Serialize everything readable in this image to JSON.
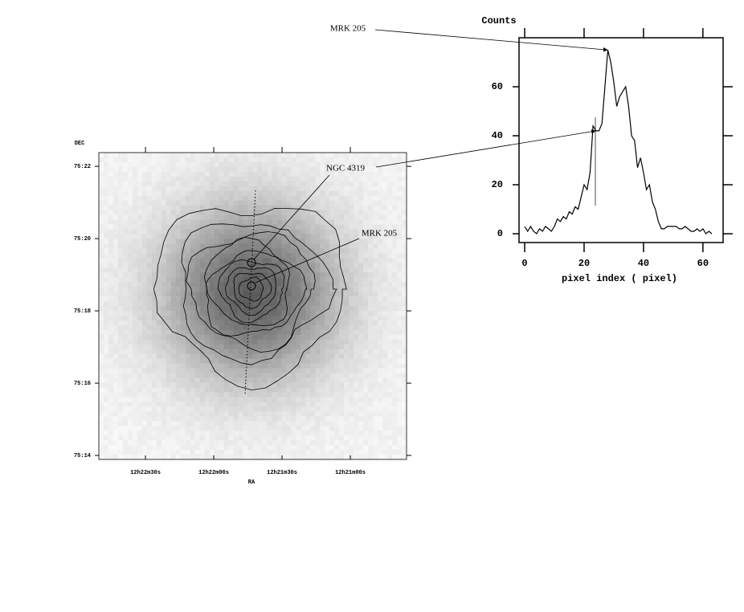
{
  "chart_data": [
    {
      "type": "image",
      "xlabel": "RA",
      "ylabel": "DEC",
      "xlim": [
        44570.5,
        44435.3
      ],
      "xticks": [
        {
          "value": 44550,
          "label": "12h22m30s"
        },
        {
          "value": 44520,
          "label": "12h22m00s"
        },
        {
          "value": 44490,
          "label": "12h21m30s"
        },
        {
          "value": 44460,
          "label": "12h21m00s"
        }
      ],
      "ylim": [
        4513.89,
        4522.38
      ],
      "yticks": [
        {
          "value": 4522,
          "label": "75:22"
        },
        {
          "value": 4520,
          "label": "75:20"
        },
        {
          "value": 4518,
          "label": "75:18"
        },
        {
          "value": 4516,
          "label": "75:16"
        },
        {
          "value": 4514,
          "label": "75:14"
        }
      ],
      "annotations": [
        {
          "text": "MRK 205"
        }
      ]
    },
    {
      "type": "line",
      "ylabel": "Counts",
      "xlabel": "pixel index  ( pixel)",
      "color": "#000000",
      "x": [
        0,
        1,
        2,
        3,
        4,
        5,
        6,
        7,
        8,
        9,
        10,
        11,
        12,
        13,
        14,
        15,
        16,
        17,
        18,
        19,
        20,
        21,
        22,
        23,
        24,
        25,
        26,
        27,
        28,
        29,
        30,
        31,
        32,
        33,
        34,
        35,
        36,
        37,
        38,
        39,
        40,
        41,
        42,
        43,
        44,
        45,
        46,
        47,
        48,
        49,
        50,
        51,
        52,
        53,
        54,
        55,
        56,
        57,
        58,
        59,
        60,
        61,
        62,
        63
      ],
      "values": [
        3,
        1,
        3,
        1,
        0,
        2,
        1,
        3,
        2,
        1,
        3,
        6,
        5,
        7,
        6,
        9,
        8,
        11,
        10,
        15,
        20,
        18,
        25,
        44,
        42,
        42,
        45,
        60,
        75,
        70,
        62,
        52,
        56,
        58,
        60,
        52,
        40,
        38,
        27,
        31,
        25,
        18,
        20,
        13,
        10,
        5,
        2,
        2,
        3,
        3,
        3,
        3,
        2,
        2,
        3,
        2,
        1,
        1,
        2,
        1,
        2,
        0,
        1,
        0
      ],
      "xlim": [
        -1.9,
        66.8
      ],
      "ylim": [
        -3.6,
        80
      ],
      "xticks": [
        0,
        20,
        40,
        60
      ],
      "yticks": [
        0,
        20,
        40,
        60
      ],
      "annotations": [
        {
          "text": "MRK 205",
          "x": 28,
          "y": 75
        },
        {
          "text": "NGC 4319",
          "x": 24,
          "y": 42
        }
      ]
    }
  ]
}
